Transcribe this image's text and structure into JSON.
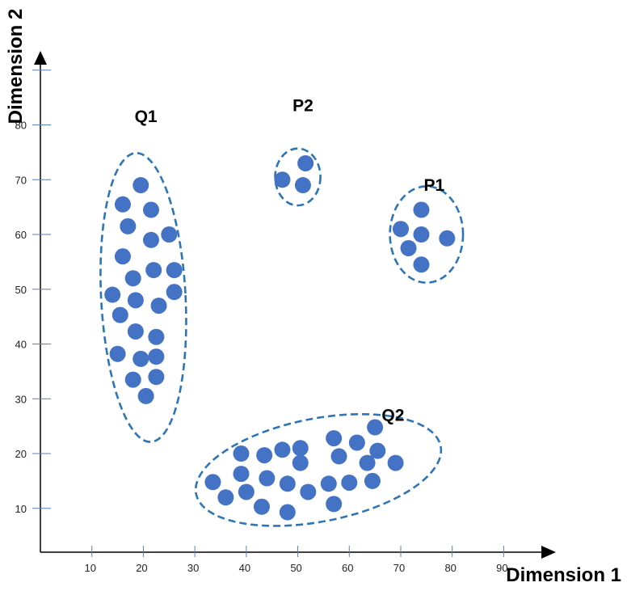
{
  "chart_data": {
    "type": "scatter",
    "xlabel": "Dimension 1",
    "ylabel": "Dimension 2",
    "x_ticks": [
      10,
      20,
      30,
      40,
      50,
      60,
      70,
      80,
      90
    ],
    "y_ticks": [
      10,
      20,
      30,
      40,
      50,
      60,
      70,
      80
    ],
    "xlim": [
      0,
      97
    ],
    "ylim": [
      2,
      91
    ],
    "grid": false,
    "colors": {
      "point": "#4472C4",
      "outline": "#2E75B6",
      "axis": "#000000",
      "tick": "#5B7FB8"
    },
    "clusters": [
      {
        "name": "Q1",
        "label_at": [
          20.5,
          80.5
        ],
        "ellipse": {
          "cx": 20,
          "cy": 48.5,
          "rx": 8.2,
          "ry": 26.4,
          "angle": -3
        },
        "points": [
          [
            19.5,
            69
          ],
          [
            16,
            65.5
          ],
          [
            21.5,
            64.5
          ],
          [
            17,
            61.5
          ],
          [
            21.5,
            59
          ],
          [
            25,
            60
          ],
          [
            16,
            56
          ],
          [
            18,
            52
          ],
          [
            22,
            53.5
          ],
          [
            26,
            53.5
          ],
          [
            14,
            49
          ],
          [
            18.5,
            48
          ],
          [
            26,
            49.5
          ],
          [
            15.5,
            45.3
          ],
          [
            23,
            47
          ],
          [
            18.5,
            42.3
          ],
          [
            22.5,
            41.3
          ],
          [
            15,
            38.2
          ],
          [
            19.5,
            37.3
          ],
          [
            22.5,
            37.7
          ],
          [
            18,
            33.5
          ],
          [
            22.5,
            34
          ],
          [
            20.5,
            30.5
          ]
        ]
      },
      {
        "name": "P2",
        "label_at": [
          51,
          82.5
        ],
        "ellipse": {
          "cx": 50,
          "cy": 70.5,
          "rx": 4.4,
          "ry": 5.2,
          "angle": 0
        },
        "points": [
          [
            51.5,
            73
          ],
          [
            47,
            70
          ],
          [
            51,
            69
          ]
        ]
      },
      {
        "name": "P1",
        "label_at": [
          76.5,
          68
        ],
        "ellipse": {
          "cx": 75,
          "cy": 60,
          "rx": 7.1,
          "ry": 8.8,
          "angle": 0
        },
        "points": [
          [
            74,
            64.5
          ],
          [
            70,
            61
          ],
          [
            74,
            60
          ],
          [
            79,
            59.3
          ],
          [
            71.5,
            57.5
          ],
          [
            74,
            54.5
          ]
        ]
      },
      {
        "name": "Q2",
        "label_at": [
          68.5,
          26
        ],
        "ellipse": {
          "cx": 54,
          "cy": 17,
          "rx": 24.2,
          "ry": 9.4,
          "angle": -11
        },
        "points": [
          [
            65,
            24.8
          ],
          [
            57,
            22.8
          ],
          [
            61.5,
            22
          ],
          [
            47,
            20.7
          ],
          [
            50.5,
            21
          ],
          [
            65.5,
            20.5
          ],
          [
            39,
            20
          ],
          [
            43.5,
            19.7
          ],
          [
            58,
            19.5
          ],
          [
            50.5,
            18.3
          ],
          [
            63.5,
            18.3
          ],
          [
            69,
            18.3
          ],
          [
            39,
            16.3
          ],
          [
            44,
            15.5
          ],
          [
            33.5,
            14.8
          ],
          [
            48,
            14.5
          ],
          [
            56,
            14.5
          ],
          [
            60,
            14.7
          ],
          [
            64.5,
            15
          ],
          [
            40,
            13
          ],
          [
            52,
            13
          ],
          [
            36,
            12
          ],
          [
            57,
            10.8
          ],
          [
            43,
            10.3
          ],
          [
            48,
            9.3
          ]
        ]
      }
    ]
  }
}
